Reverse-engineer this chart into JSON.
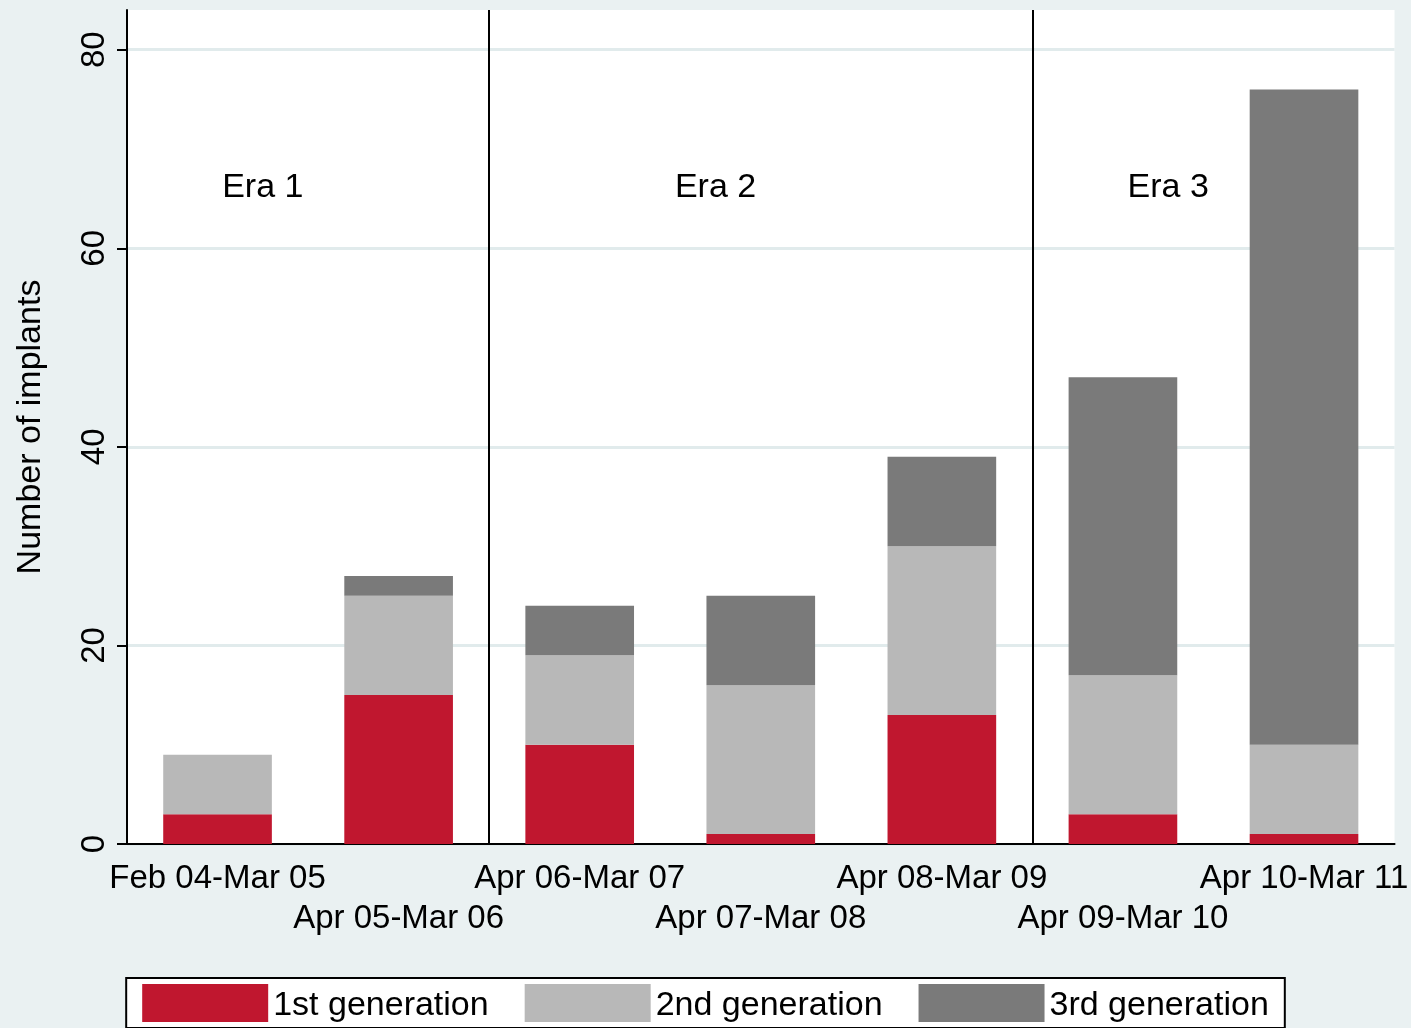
{
  "chart_data": {
    "type": "bar",
    "stacked": true,
    "ylabel": "Number of implants",
    "categories": [
      "Feb 04-Mar 05",
      "Apr 05-Mar 06",
      "Apr 06-Mar 07",
      "Apr 07-Mar 08",
      "Apr 08-Mar 09",
      "Apr 09-Mar 10",
      "Apr 10-Mar 11"
    ],
    "series": [
      {
        "name": "1st generation",
        "color": "#c0172f",
        "values": [
          3,
          15,
          10,
          1,
          13,
          3,
          1
        ]
      },
      {
        "name": "2nd generation",
        "color": "#b8b8b8",
        "values": [
          6,
          10,
          9,
          15,
          17,
          14,
          9
        ]
      },
      {
        "name": "3rd generation",
        "color": "#7a7a7a",
        "values": [
          0,
          2,
          5,
          9,
          9,
          30,
          66
        ]
      }
    ],
    "ylim": [
      0,
      84
    ],
    "yticks": [
      0,
      20,
      40,
      60,
      80
    ],
    "grid": "y",
    "legend": "bottom",
    "annotations": [
      "Era 1",
      "Era 2",
      "Era 3"
    ]
  }
}
